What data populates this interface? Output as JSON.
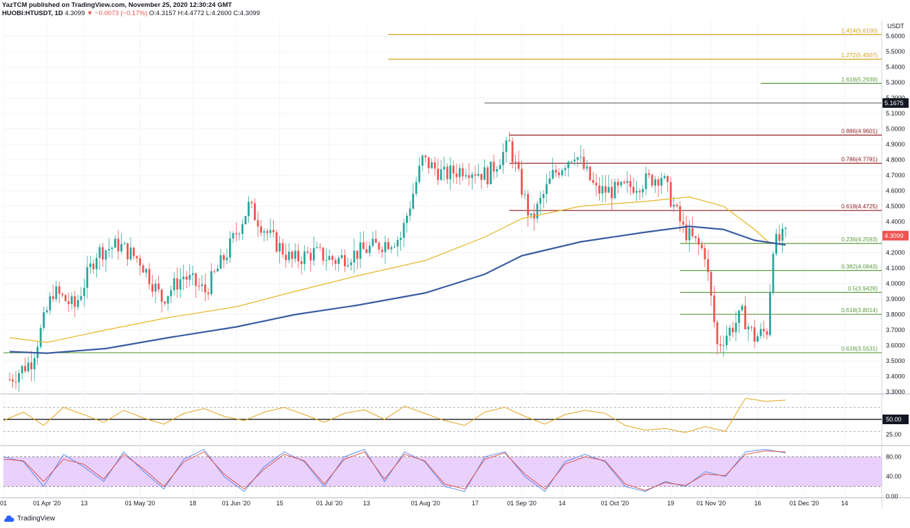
{
  "header": {
    "publisher_line": "YazTCM published on TradingView.com, November 25, 2020 12:30:24 GMT",
    "symbol": "HUOBI:HTUSDT, 1D",
    "last": "4.3099",
    "change": "▼ −0.0073 (−0.17%)",
    "ohlc": "O:4.3157 H:4.4772 L:4.2600 C:4.3099"
  },
  "footer": {
    "brand": "TradingView"
  },
  "colors": {
    "up": "#26a69a",
    "down": "#ef5350",
    "ma_short": "#e6b422",
    "ma_long": "#3a5ba0",
    "fib_gold": "#d4a017",
    "fib_green": "#5a9a3a",
    "fib_red": "#8b1a1a",
    "rsi": "#e3a21a",
    "stoch_k": "#5b8def",
    "stoch_d": "#e0504c",
    "stoch_band": "#e4c6fa"
  },
  "chart_data": [
    {
      "type": "candlestick",
      "title": "HUOBI:HTUSDT, 1D",
      "y_unit": "USDT",
      "ylim": [
        3.3,
        5.7
      ],
      "y_ticks": [
        5.6,
        5.5,
        5.4,
        5.3,
        5.2,
        5.1,
        5.0,
        4.9,
        4.8,
        4.7,
        4.6,
        4.5,
        4.4,
        4.3,
        4.2,
        4.1,
        4.0,
        3.9,
        3.8,
        3.7,
        3.6,
        3.5,
        3.4,
        3.3
      ],
      "y_tick_labels": [
        "5.6000",
        "5.5000",
        "5.4000",
        "5.3000",
        "5.2000",
        "5.1000",
        "5.0000",
        "4.9000",
        "4.8000",
        "4.7000",
        "4.6000",
        "4.5000",
        "4.4000",
        "4.3000",
        "4.2000",
        "4.1000",
        "4.0000",
        "3.9000",
        "3.8000",
        "3.7000",
        "3.6000",
        "3.5000",
        "3.4000",
        "3.3000"
      ],
      "x_ticks": [
        "01",
        "01 Apr '20",
        "13",
        "01 May '20",
        "18",
        "01 Jun '20",
        "15",
        "01 Jul '20",
        "13",
        "01 Aug '20",
        "17",
        "01 Sep '20",
        "14",
        "01 Oct '20",
        "19",
        "01 Nov '20",
        "16",
        "01 Dec '20",
        "14"
      ],
      "price_badges": [
        {
          "label": "5.1675",
          "value": 5.1675,
          "style": "dark"
        },
        {
          "label": "4.3099",
          "value": 4.3099,
          "style": "red"
        }
      ],
      "fib_levels": [
        {
          "label": "1.414(5.6100)",
          "value": 5.61,
          "color": "gold"
        },
        {
          "label": "1.272(5.4507)",
          "value": 5.4507,
          "color": "gold"
        },
        {
          "label": "1.618(5.2939)",
          "value": 5.2939,
          "color": "green"
        },
        {
          "label": "0.886(4.9601)",
          "value": 4.9601,
          "color": "red"
        },
        {
          "label": "0.786(4.7781)",
          "value": 4.7781,
          "color": "red"
        },
        {
          "label": "0.618(4.4725)",
          "value": 4.4725,
          "color": "red"
        },
        {
          "label": "0.236(4.2593)",
          "value": 4.2593,
          "color": "green"
        },
        {
          "label": "0.382(4.0843)",
          "value": 4.0843,
          "color": "green"
        },
        {
          "label": "0.5(3.9428)",
          "value": 3.9428,
          "color": "green"
        },
        {
          "label": "0.618(3.8014)",
          "value": 3.8014,
          "color": "green"
        },
        {
          "label": "0.618(3.5531)",
          "value": 3.5531,
          "color": "green"
        }
      ],
      "resistance_line": {
        "value": 5.1675,
        "from": "2020-08-20"
      },
      "closes": [
        [
          "2020-03-20",
          3.38
        ],
        [
          "2020-03-27",
          3.5
        ],
        [
          "2020-04-03",
          3.95
        ],
        [
          "2020-04-10",
          3.85
        ],
        [
          "2020-04-17",
          4.2
        ],
        [
          "2020-04-24",
          4.25
        ],
        [
          "2020-05-01",
          4.15
        ],
        [
          "2020-05-08",
          3.9
        ],
        [
          "2020-05-15",
          4.05
        ],
        [
          "2020-05-22",
          3.95
        ],
        [
          "2020-05-29",
          4.2
        ],
        [
          "2020-06-05",
          4.5
        ],
        [
          "2020-06-12",
          4.3
        ],
        [
          "2020-06-19",
          4.15
        ],
        [
          "2020-06-26",
          4.2
        ],
        [
          "2020-07-03",
          4.15
        ],
        [
          "2020-07-10",
          4.2
        ],
        [
          "2020-07-17",
          4.25
        ],
        [
          "2020-07-24",
          4.3
        ],
        [
          "2020-07-31",
          4.8
        ],
        [
          "2020-08-07",
          4.7
        ],
        [
          "2020-08-14",
          4.75
        ],
        [
          "2020-08-21",
          4.7
        ],
        [
          "2020-08-28",
          4.9
        ],
        [
          "2020-09-04",
          4.4
        ],
        [
          "2020-09-11",
          4.7
        ],
        [
          "2020-09-18",
          4.85
        ],
        [
          "2020-09-25",
          4.6
        ],
        [
          "2020-10-02",
          4.6
        ],
        [
          "2020-10-09",
          4.65
        ],
        [
          "2020-10-16",
          4.7
        ],
        [
          "2020-10-23",
          4.35
        ],
        [
          "2020-10-30",
          4.2
        ],
        [
          "2020-11-03",
          3.6
        ],
        [
          "2020-11-07",
          3.7
        ],
        [
          "2020-11-11",
          3.8
        ],
        [
          "2020-11-15",
          3.65
        ],
        [
          "2020-11-19",
          3.7
        ],
        [
          "2020-11-21",
          4.25
        ],
        [
          "2020-11-25",
          4.3099
        ]
      ],
      "ma_short": [
        [
          "2020-03-20",
          3.65
        ],
        [
          "2020-04-01",
          3.62
        ],
        [
          "2020-04-20",
          3.7
        ],
        [
          "2020-05-10",
          3.78
        ],
        [
          "2020-06-01",
          3.85
        ],
        [
          "2020-06-20",
          3.95
        ],
        [
          "2020-07-10",
          4.05
        ],
        [
          "2020-08-01",
          4.15
        ],
        [
          "2020-08-20",
          4.3
        ],
        [
          "2020-09-01",
          4.42
        ],
        [
          "2020-09-20",
          4.5
        ],
        [
          "2020-10-10",
          4.53
        ],
        [
          "2020-10-25",
          4.56
        ],
        [
          "2020-11-05",
          4.5
        ],
        [
          "2020-11-15",
          4.35
        ],
        [
          "2020-11-20",
          4.26
        ]
      ],
      "ma_long": [
        [
          "2020-03-20",
          3.56
        ],
        [
          "2020-04-01",
          3.55
        ],
        [
          "2020-04-20",
          3.58
        ],
        [
          "2020-05-10",
          3.65
        ],
        [
          "2020-06-01",
          3.72
        ],
        [
          "2020-06-20",
          3.8
        ],
        [
          "2020-07-10",
          3.86
        ],
        [
          "2020-08-01",
          3.94
        ],
        [
          "2020-08-20",
          4.06
        ],
        [
          "2020-09-01",
          4.18
        ],
        [
          "2020-09-20",
          4.27
        ],
        [
          "2020-10-10",
          4.33
        ],
        [
          "2020-10-25",
          4.37
        ],
        [
          "2020-11-05",
          4.35
        ],
        [
          "2020-11-15",
          4.28
        ],
        [
          "2020-11-25",
          4.25
        ]
      ]
    },
    {
      "type": "line",
      "title": "",
      "ylim": [
        10,
        90
      ],
      "y_tick_labels": [
        "50.00",
        "25.00"
      ],
      "midline": 50,
      "series": [
        {
          "values": [
            48,
            62,
            40,
            70,
            58,
            45,
            65,
            52,
            42,
            60,
            68,
            55,
            48,
            62,
            70,
            58,
            45,
            60,
            66,
            50,
            72,
            60,
            48,
            40,
            62,
            70,
            55,
            42,
            58,
            65,
            60,
            40,
            32,
            35,
            28,
            38,
            30,
            85,
            80,
            82
          ]
        }
      ]
    },
    {
      "type": "line",
      "title": "",
      "ylim": [
        0,
        100
      ],
      "y_tick_labels": [
        "80.00",
        "40.00",
        "0.00"
      ],
      "band": [
        20,
        80
      ],
      "series": [
        {
          "values": [
            80,
            70,
            20,
            85,
            60,
            30,
            90,
            50,
            15,
            75,
            95,
            40,
            10,
            60,
            90,
            70,
            20,
            80,
            95,
            30,
            90,
            70,
            20,
            10,
            80,
            90,
            40,
            10,
            70,
            85,
            70,
            20,
            10,
            30,
            20,
            50,
            40,
            90,
            95,
            88
          ]
        },
        {
          "values": [
            75,
            72,
            30,
            75,
            65,
            35,
            85,
            55,
            20,
            70,
            90,
            45,
            15,
            55,
            85,
            72,
            25,
            75,
            90,
            35,
            85,
            72,
            25,
            15,
            75,
            88,
            45,
            15,
            65,
            80,
            72,
            25,
            12,
            28,
            22,
            45,
            42,
            85,
            92,
            90
          ]
        }
      ]
    }
  ]
}
